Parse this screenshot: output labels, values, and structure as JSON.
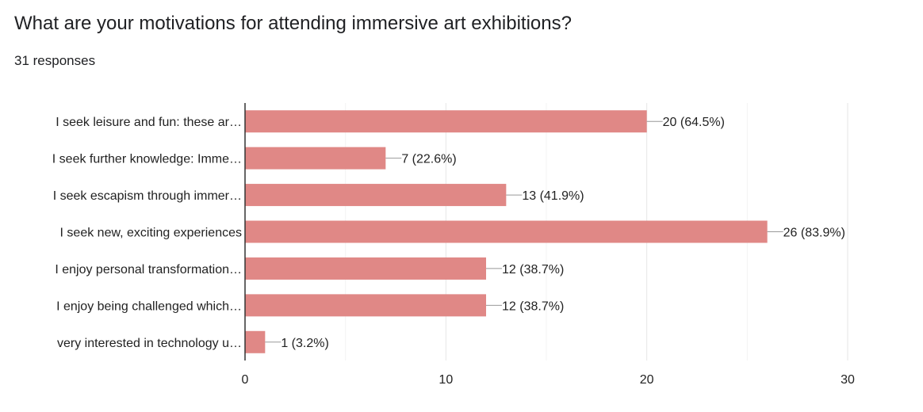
{
  "chart_data": {
    "type": "bar",
    "orientation": "horizontal",
    "title": "What are your motivations for attending immersive art exhibitions?",
    "subtitle": "31 responses",
    "categories": [
      "I seek leisure and fun: these ar…",
      "I seek further knowledge: Imme…",
      "I seek escapism through immer…",
      "I seek new, exciting experiences",
      "I enjoy personal transformation…",
      "I enjoy being challenged which…",
      "very interested in technology u…"
    ],
    "values": [
      20,
      7,
      13,
      26,
      12,
      12,
      1
    ],
    "data_labels": [
      "20 (64.5%)",
      "7 (22.6%)",
      "13 (41.9%)",
      "26 (83.9%)",
      "12 (38.7%)",
      "12 (38.7%)",
      "1 (3.2%)"
    ],
    "xlim": [
      0,
      30
    ],
    "xticks": [
      0,
      10,
      20,
      30
    ],
    "tick_labels": [
      "0",
      "10",
      "20",
      "30"
    ],
    "minor_grid": [
      5,
      15,
      25
    ],
    "grid": true,
    "bar_color": "#e08886"
  }
}
